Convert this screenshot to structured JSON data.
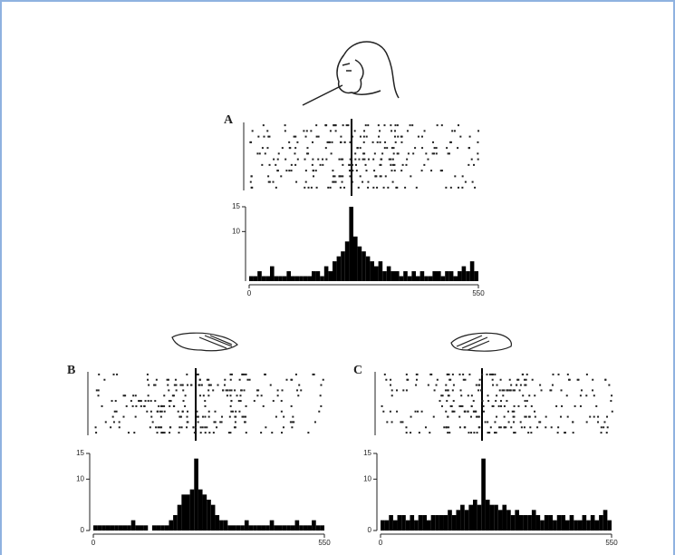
{
  "chart_data": [
    {
      "type": "histogram",
      "label": "A",
      "bins": [
        0,
        10,
        20,
        30,
        40,
        50,
        60,
        70,
        80,
        90,
        100,
        110,
        120,
        130,
        140,
        150,
        160,
        170,
        180,
        190,
        200,
        210,
        220,
        230,
        240,
        250,
        260,
        270,
        280,
        290,
        300,
        310,
        320,
        330,
        340,
        350,
        360,
        370,
        380,
        390,
        400,
        410,
        420,
        430,
        440,
        450,
        460,
        470,
        480,
        490,
        500,
        510,
        520,
        530,
        540,
        550
      ],
      "values": [
        1,
        1,
        2,
        1,
        1,
        3,
        1,
        1,
        1,
        2,
        1,
        1,
        1,
        1,
        1,
        2,
        2,
        1,
        3,
        2,
        4,
        5,
        6,
        8,
        15,
        9,
        7,
        6,
        5,
        4,
        3,
        4,
        2,
        3,
        2,
        2,
        1,
        2,
        1,
        2,
        1,
        2,
        1,
        1,
        2,
        2,
        1,
        2,
        2,
        1,
        2,
        3,
        2,
        4,
        2
      ],
      "xlim": [
        0,
        550
      ],
      "ylim": [
        0,
        15
      ],
      "xticks": [
        0,
        550
      ],
      "yticks": [
        10,
        15
      ],
      "color": "#000000"
    },
    {
      "type": "histogram",
      "label": "B",
      "bins": [
        0,
        10,
        20,
        30,
        40,
        50,
        60,
        70,
        80,
        90,
        100,
        110,
        120,
        130,
        140,
        150,
        160,
        170,
        180,
        190,
        200,
        210,
        220,
        230,
        240,
        250,
        260,
        270,
        280,
        290,
        300,
        310,
        320,
        330,
        340,
        350,
        360,
        370,
        380,
        390,
        400,
        410,
        420,
        430,
        440,
        450,
        460,
        470,
        480,
        490,
        500,
        510,
        520,
        530,
        540,
        550
      ],
      "values": [
        1,
        1,
        1,
        1,
        1,
        1,
        1,
        1,
        1,
        2,
        1,
        1,
        1,
        0,
        1,
        1,
        1,
        1,
        2,
        3,
        5,
        7,
        7,
        8,
        14,
        8,
        7,
        6,
        5,
        3,
        2,
        2,
        1,
        1,
        1,
        1,
        2,
        1,
        1,
        1,
        1,
        1,
        2,
        1,
        1,
        1,
        1,
        1,
        2,
        1,
        1,
        1,
        2,
        1,
        1
      ],
      "xlim": [
        0,
        550
      ],
      "ylim": [
        0,
        15
      ],
      "xticks": [
        0,
        550
      ],
      "yticks": [
        0,
        10,
        15
      ],
      "color": "#000000"
    },
    {
      "type": "histogram",
      "label": "C",
      "bins": [
        0,
        10,
        20,
        30,
        40,
        50,
        60,
        70,
        80,
        90,
        100,
        110,
        120,
        130,
        140,
        150,
        160,
        170,
        180,
        190,
        200,
        210,
        220,
        230,
        240,
        250,
        260,
        270,
        280,
        290,
        300,
        310,
        320,
        330,
        340,
        350,
        360,
        370,
        380,
        390,
        400,
        410,
        420,
        430,
        440,
        450,
        460,
        470,
        480,
        490,
        500,
        510,
        520,
        530,
        540,
        550
      ],
      "values": [
        2,
        2,
        3,
        2,
        3,
        3,
        2,
        3,
        2,
        3,
        3,
        2,
        3,
        3,
        3,
        3,
        4,
        3,
        4,
        5,
        4,
        5,
        6,
        5,
        14,
        6,
        5,
        5,
        4,
        5,
        4,
        3,
        4,
        3,
        3,
        3,
        4,
        3,
        2,
        3,
        3,
        2,
        3,
        3,
        2,
        3,
        2,
        2,
        3,
        2,
        3,
        2,
        3,
        4,
        2
      ],
      "xlim": [
        0,
        550
      ],
      "ylim": [
        0,
        15
      ],
      "xticks": [
        0,
        550
      ],
      "yticks": [
        0,
        10,
        15
      ],
      "color": "#000000"
    }
  ]
}
